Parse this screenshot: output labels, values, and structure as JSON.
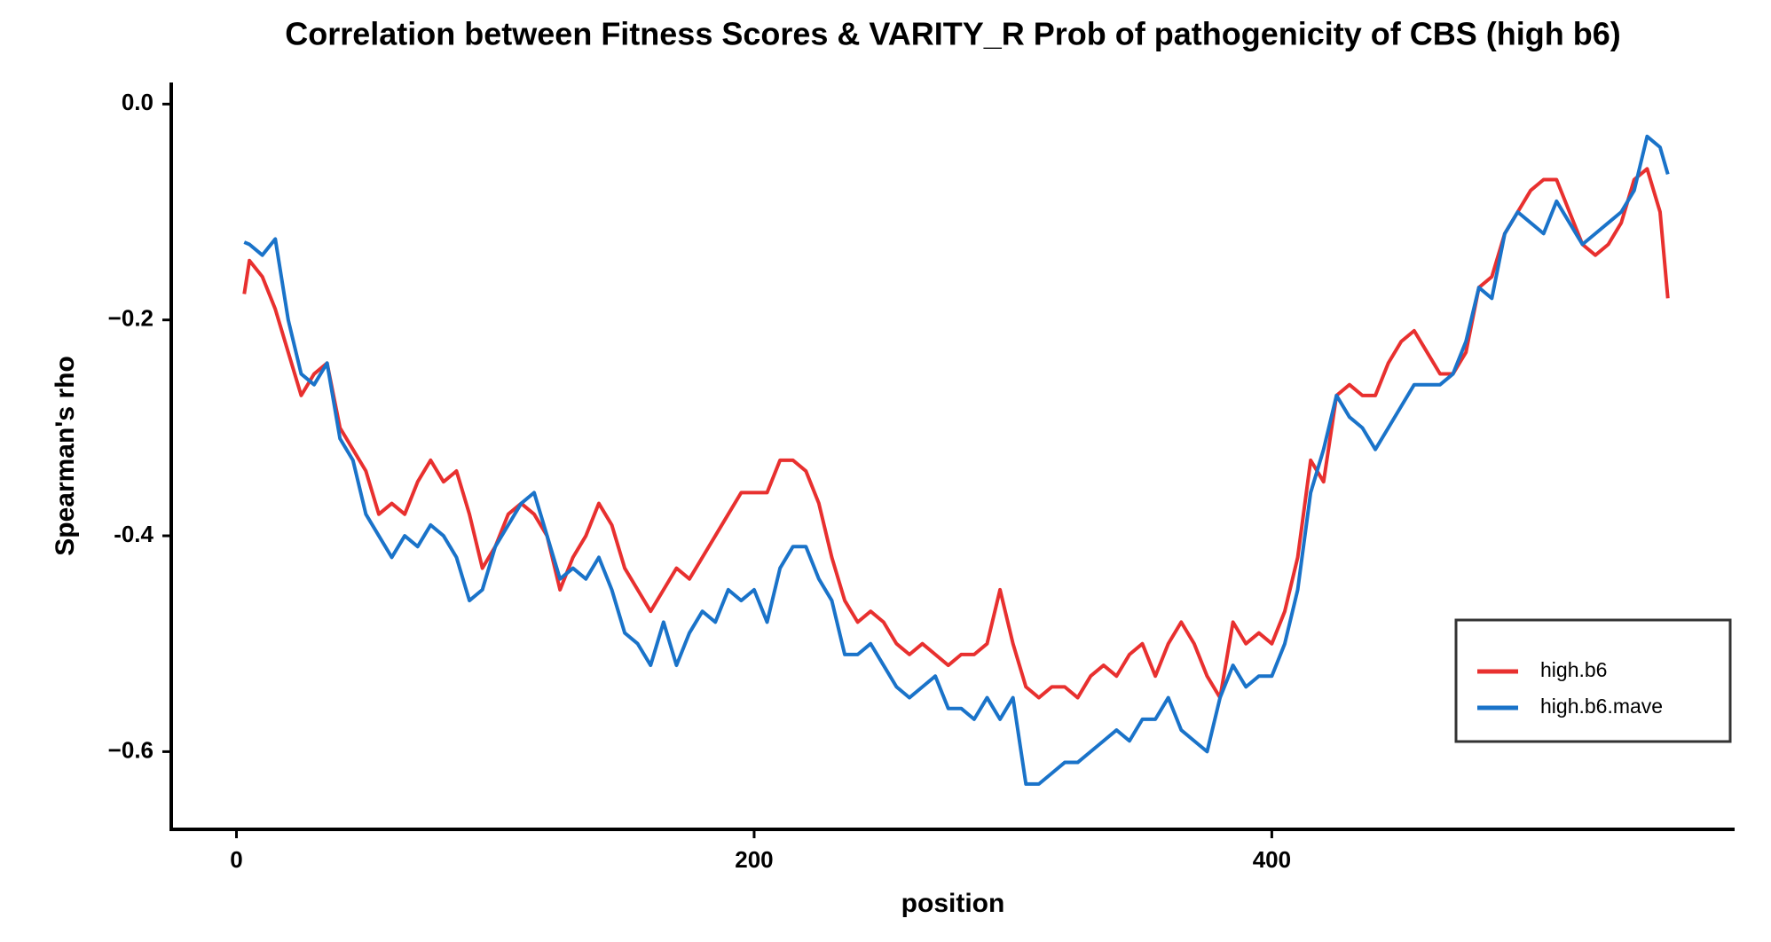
{
  "chart_data": {
    "type": "line",
    "title": "Correlation between Fitness Scores & VARITY_R Prob of pathogenicity of CBS (high b6)",
    "x_label": "position",
    "y_label": "Spearman's rho",
    "xlim": [
      -25.2,
      578.8
    ],
    "ylim": [
      -0.672,
      0.02
    ],
    "xticks": [
      0,
      200,
      400
    ],
    "yticks": [
      {
        "value": 0,
        "label": "0.0"
      },
      {
        "value": -0.2,
        "label": "−0.2"
      },
      {
        "value": -0.4,
        "label": "-0.4"
      },
      {
        "value": -0.6,
        "label": "−0.6"
      }
    ],
    "legend_position": "right",
    "x": [
      3,
      5,
      10,
      15,
      20,
      25,
      30,
      35,
      40,
      45,
      50,
      55,
      60,
      65,
      70,
      75,
      80,
      85,
      90,
      95,
      100,
      105,
      110,
      115,
      120,
      125,
      130,
      135,
      140,
      145,
      150,
      155,
      160,
      165,
      170,
      175,
      180,
      185,
      190,
      195,
      200,
      205,
      210,
      215,
      220,
      225,
      230,
      235,
      240,
      245,
      250,
      255,
      260,
      265,
      270,
      275,
      280,
      285,
      290,
      295,
      300,
      305,
      310,
      315,
      320,
      325,
      330,
      335,
      340,
      345,
      350,
      355,
      360,
      365,
      370,
      375,
      380,
      385,
      390,
      395,
      400,
      405,
      410,
      415,
      420,
      425,
      430,
      435,
      440,
      445,
      450,
      455,
      460,
      465,
      470,
      475,
      480,
      485,
      490,
      495,
      500,
      505,
      510,
      515,
      520,
      525,
      530,
      535,
      540,
      545,
      550,
      553
    ],
    "series": [
      {
        "name": "high.b6",
        "color": "#e8302f",
        "values": [
          -0.176,
          -0.145,
          -0.16,
          -0.19,
          -0.23,
          -0.27,
          -0.25,
          -0.24,
          -0.3,
          -0.32,
          -0.34,
          -0.38,
          -0.37,
          -0.38,
          -0.35,
          -0.33,
          -0.35,
          -0.34,
          -0.38,
          -0.43,
          -0.41,
          -0.38,
          -0.37,
          -0.38,
          -0.4,
          -0.45,
          -0.42,
          -0.4,
          -0.37,
          -0.39,
          -0.43,
          -0.45,
          -0.47,
          -0.45,
          -0.43,
          -0.44,
          -0.42,
          -0.4,
          -0.38,
          -0.36,
          -0.36,
          -0.36,
          -0.33,
          -0.33,
          -0.34,
          -0.37,
          -0.42,
          -0.46,
          -0.48,
          -0.47,
          -0.48,
          -0.5,
          -0.51,
          -0.5,
          -0.51,
          -0.52,
          -0.51,
          -0.51,
          -0.5,
          -0.45,
          -0.5,
          -0.54,
          -0.55,
          -0.54,
          -0.54,
          -0.55,
          -0.53,
          -0.52,
          -0.53,
          -0.51,
          -0.5,
          -0.53,
          -0.5,
          -0.48,
          -0.5,
          -0.53,
          -0.55,
          -0.48,
          -0.5,
          -0.49,
          -0.5,
          -0.47,
          -0.42,
          -0.33,
          -0.35,
          -0.27,
          -0.26,
          -0.27,
          -0.27,
          -0.24,
          -0.22,
          -0.21,
          -0.23,
          -0.25,
          -0.25,
          -0.23,
          -0.17,
          -0.16,
          -0.12,
          -0.1,
          -0.08,
          -0.07,
          -0.07,
          -0.1,
          -0.13,
          -0.14,
          -0.13,
          -0.11,
          -0.07,
          -0.06,
          -0.1,
          -0.18
        ]
      },
      {
        "name": "high.b6.mave",
        "color": "#1a73c9",
        "values": [
          -0.128,
          -0.13,
          -0.14,
          -0.125,
          -0.2,
          -0.25,
          -0.26,
          -0.24,
          -0.31,
          -0.33,
          -0.38,
          -0.4,
          -0.42,
          -0.4,
          -0.41,
          -0.39,
          -0.4,
          -0.42,
          -0.46,
          -0.45,
          -0.41,
          -0.39,
          -0.37,
          -0.36,
          -0.4,
          -0.44,
          -0.43,
          -0.44,
          -0.42,
          -0.45,
          -0.49,
          -0.5,
          -0.52,
          -0.48,
          -0.52,
          -0.49,
          -0.47,
          -0.48,
          -0.45,
          -0.46,
          -0.45,
          -0.48,
          -0.43,
          -0.41,
          -0.41,
          -0.44,
          -0.46,
          -0.51,
          -0.51,
          -0.5,
          -0.52,
          -0.54,
          -0.55,
          -0.54,
          -0.53,
          -0.56,
          -0.56,
          -0.57,
          -0.55,
          -0.57,
          -0.55,
          -0.63,
          -0.63,
          -0.62,
          -0.61,
          -0.61,
          -0.6,
          -0.59,
          -0.58,
          -0.59,
          -0.57,
          -0.57,
          -0.55,
          -0.58,
          -0.59,
          -0.6,
          -0.55,
          -0.52,
          -0.54,
          -0.53,
          -0.53,
          -0.5,
          -0.45,
          -0.36,
          -0.32,
          -0.27,
          -0.29,
          -0.3,
          -0.32,
          -0.3,
          -0.28,
          -0.26,
          -0.26,
          -0.26,
          -0.25,
          -0.22,
          -0.17,
          -0.18,
          -0.12,
          -0.1,
          -0.11,
          -0.12,
          -0.09,
          -0.11,
          -0.13,
          -0.12,
          -0.11,
          -0.1,
          -0.08,
          -0.03,
          -0.04,
          -0.065
        ]
      }
    ]
  }
}
